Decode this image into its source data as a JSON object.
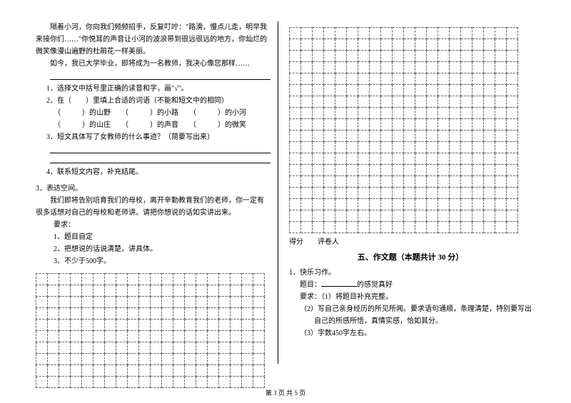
{
  "leftCol": {
    "passage1": "隔着小河，你向我们频频招手，反复叮咛：\"路滑，慢点儿走，明早我来接你们……\"你悦耳的声音让小河的波浪带到很远很远的地方，你灿烂的微笑像漫山遍野的杜鹃花一样美丽。",
    "passage2": "如今，我已大学毕业，即将成为一名教师，我决心像您那样",
    "passage2_suffix": "……",
    "q1": "1．选择文中括号里正确的读音和字，画\"√\"。",
    "q2": "2．在（　　）里填上合适的词语（不能和短文中的相同）",
    "q2_line1": "（　　　）的山野　　（　　　）的小路　　（　　　）的小河",
    "q2_line2": "（　　　）的山庄　　（　　　）的声音　　（　　　）的微笑",
    "q3": "3．短文具体写了女教师的什么事迹？（简要写出来）",
    "q4": "4．联系短文内容，补充结尾。",
    "section3": "3．表达空间。",
    "section3_text": "我们即将告别培育我们的母校，离开辛勤教育我们的老师，你一定有很多话想对自己的母校和老师讲。请把你想说的话如实讲出来。",
    "req_label": "要求：",
    "req1": "1、题目自定",
    "req2": "2、把想说的话说清楚，讲具体。",
    "req3": "3、不少于500字。",
    "grid": {
      "rows": 10,
      "cols": 20
    }
  },
  "rightCol": {
    "topGrid": {
      "rows": 18,
      "cols": 20
    },
    "score": "得分",
    "reviewer": "评卷人",
    "sectionTitle": "五、作文题（本题共计 30 分）",
    "q1": "1．快乐习作。",
    "title_label": "题目：",
    "title_suffix": "的感觉真好",
    "req_label": "要求：",
    "req1": "（1）将题目补充完整。",
    "req2": "（2）写自己亲身经历的所见所闻。要求语句通顺，条理清楚，特别要写出自己的所感所悟，真情实感，恰如其分。",
    "req3": "（3）字数450字左右。"
  },
  "footer": "第 3 页 共 5 页"
}
